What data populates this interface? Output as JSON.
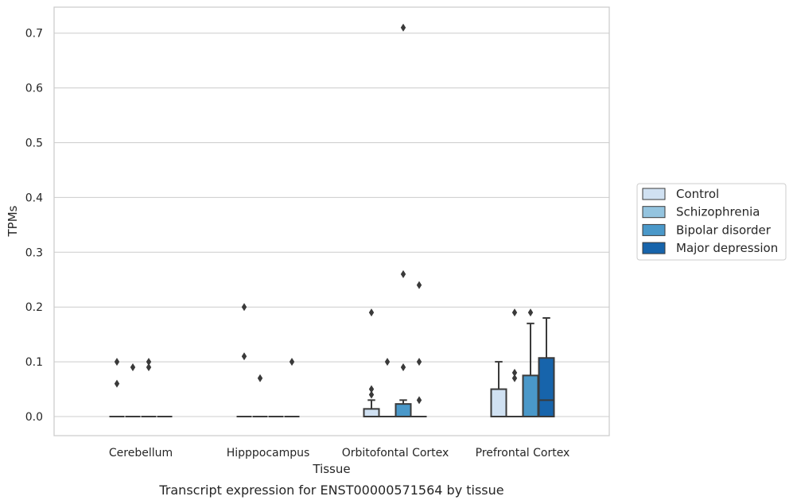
{
  "chart_data": {
    "type": "box",
    "xlabel": "Tissue",
    "ylabel": "TPMs",
    "caption": "Transcript expression for ENST00000571564 by tissue",
    "ylim": [
      -0.035,
      0.745
    ],
    "yticks": [
      0.0,
      0.1,
      0.2,
      0.3,
      0.4,
      0.5,
      0.6,
      0.7
    ],
    "ytick_labels": [
      "0.0",
      "0.1",
      "0.2",
      "0.3",
      "0.4",
      "0.5",
      "0.6",
      "0.7"
    ],
    "grid": "horizontal",
    "legend_position": "right",
    "categories": [
      "Cerebellum",
      "Hipppocampus",
      "Orbitofontal Cortex",
      "Prefrontal Cortex"
    ],
    "series": [
      {
        "name": "Control",
        "color": "#d0e1f2",
        "boxes": [
          {
            "q1": 0,
            "median": 0,
            "q3": 0,
            "whislo": 0,
            "whishi": 0,
            "fliers": [
              0.1,
              0.06
            ]
          },
          {
            "q1": 0,
            "median": 0,
            "q3": 0,
            "whislo": 0,
            "whishi": 0,
            "fliers": [
              0.2,
              0.11
            ]
          },
          {
            "q1": 0,
            "median": 0,
            "q3": 0.014,
            "whislo": 0,
            "whishi": 0.03,
            "fliers": [
              0.19,
              0.05,
              0.04
            ]
          },
          {
            "q1": 0,
            "median": 0,
            "q3": 0.05,
            "whislo": 0,
            "whishi": 0.1,
            "fliers": []
          }
        ]
      },
      {
        "name": "Schizophrenia",
        "color": "#94c4df",
        "boxes": [
          {
            "q1": 0,
            "median": 0,
            "q3": 0,
            "whislo": 0,
            "whishi": 0,
            "fliers": [
              0.09
            ]
          },
          {
            "q1": 0,
            "median": 0,
            "q3": 0,
            "whislo": 0,
            "whishi": 0,
            "fliers": [
              0.07
            ]
          },
          {
            "q1": 0,
            "median": 0,
            "q3": 0,
            "whislo": 0,
            "whishi": 0,
            "fliers": [
              0.1
            ]
          },
          {
            "q1": 0,
            "median": 0,
            "q3": 0,
            "whislo": 0,
            "whishi": 0,
            "fliers": [
              0.19,
              0.08,
              0.07
            ]
          }
        ]
      },
      {
        "name": "Bipolar disorder",
        "color": "#4a98c9",
        "boxes": [
          {
            "q1": 0,
            "median": 0,
            "q3": 0,
            "whislo": 0,
            "whishi": 0,
            "fliers": [
              0.1,
              0.09
            ]
          },
          {
            "q1": 0,
            "median": 0,
            "q3": 0,
            "whislo": 0,
            "whishi": 0,
            "fliers": []
          },
          {
            "q1": 0,
            "median": 0,
            "q3": 0.023,
            "whislo": 0,
            "whishi": 0.03,
            "fliers": [
              0.71,
              0.26,
              0.09
            ]
          },
          {
            "q1": 0,
            "median": 0,
            "q3": 0.075,
            "whislo": 0,
            "whishi": 0.17,
            "fliers": [
              0.19
            ]
          }
        ]
      },
      {
        "name": "Major depression",
        "color": "#1764ab",
        "boxes": [
          {
            "q1": 0,
            "median": 0,
            "q3": 0,
            "whislo": 0,
            "whishi": 0,
            "fliers": []
          },
          {
            "q1": 0,
            "median": 0,
            "q3": 0,
            "whislo": 0,
            "whishi": 0,
            "fliers": [
              0.1
            ]
          },
          {
            "q1": 0,
            "median": 0,
            "q3": 0,
            "whislo": 0,
            "whishi": 0,
            "fliers": [
              0.24,
              0.1,
              0.03
            ]
          },
          {
            "q1": 0,
            "median": 0.03,
            "q3": 0.107,
            "whislo": 0,
            "whishi": 0.18,
            "fliers": []
          }
        ]
      }
    ]
  }
}
